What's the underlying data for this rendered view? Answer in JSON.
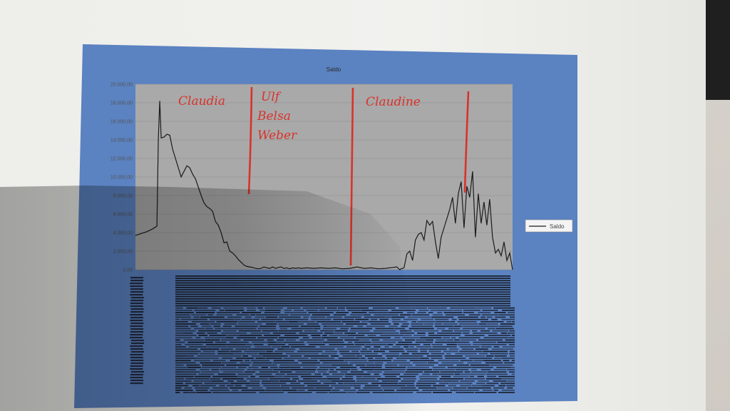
{
  "photo": {
    "subject": "printed chart page photographed on a table",
    "colors": {
      "table": "#d9d7d1",
      "paper": "#efefec",
      "chart_frame": "#5b82c1",
      "plot_area": "#a9a9a9",
      "line": "#1a1a1a",
      "marker_pen": "#d9322b"
    }
  },
  "chart_data": {
    "type": "line",
    "title": "Saldo",
    "xlabel": "",
    "ylabel": "",
    "ylim": [
      0,
      20000
    ],
    "yticks": [
      "20.000,00",
      "18.000,00",
      "16.000,00",
      "14.000,00",
      "12.000,00",
      "10.000,00",
      "8.000,00",
      "6.000,00",
      "4.000,00",
      "2.000,00",
      "0,00"
    ],
    "grid": true,
    "legend": {
      "placement": "right",
      "entries": [
        "Saldo"
      ]
    },
    "series": [
      {
        "name": "Saldo",
        "x": [
          0,
          8,
          16,
          24,
          30,
          32,
          34,
          36,
          40,
          44,
          48,
          52,
          56,
          60,
          64,
          68,
          72,
          76,
          80,
          84,
          88,
          92,
          96,
          100,
          104,
          108,
          112,
          116,
          120,
          124,
          128,
          132,
          136,
          140,
          144,
          148,
          152,
          156,
          160,
          164,
          168,
          172,
          176,
          180,
          184,
          188,
          192,
          196,
          200,
          204,
          208,
          212,
          216,
          220,
          224,
          228,
          232,
          240,
          250,
          260,
          270,
          280,
          290,
          300,
          310,
          320,
          330,
          340,
          350,
          360,
          366,
          370,
          372,
          376,
          380,
          384,
          388,
          392,
          396,
          400,
          404,
          408,
          412,
          416,
          420,
          424,
          428,
          432,
          436,
          440,
          444,
          448,
          452,
          456,
          460,
          464,
          468,
          472,
          476,
          480,
          484,
          488,
          492,
          496,
          500,
          504,
          508,
          512,
          516,
          520,
          524,
          528
        ],
        "values": [
          3700,
          3900,
          4100,
          4400,
          4700,
          14100,
          18200,
          14200,
          14300,
          14600,
          14500,
          13000,
          12000,
          11000,
          10000,
          10600,
          11200,
          11000,
          10300,
          9800,
          8900,
          8000,
          7200,
          6800,
          6600,
          6300,
          5200,
          4800,
          4000,
          2900,
          3000,
          2000,
          1800,
          1500,
          1100,
          800,
          500,
          350,
          300,
          250,
          150,
          100,
          150,
          300,
          200,
          150,
          300,
          150,
          250,
          300,
          150,
          200,
          100,
          200,
          150,
          200,
          150,
          200,
          150,
          200,
          150,
          200,
          100,
          150,
          300,
          150,
          200,
          100,
          150,
          250,
          300,
          0,
          100,
          200,
          1700,
          2000,
          1000,
          3200,
          3800,
          4000,
          3200,
          5300,
          4800,
          5200,
          3000,
          1200,
          3500,
          4500,
          5500,
          6500,
          7800,
          5000,
          8200,
          9500,
          4500,
          9000,
          7800,
          10600,
          3500,
          8200,
          5000,
          7300,
          4800,
          7600,
          3500,
          1800,
          2200,
          1500,
          3000,
          1000,
          1800,
          0
        ]
      }
    ],
    "annotations": [
      {
        "text": "Claudia",
        "style": "handwritten"
      },
      {
        "text": "Ulf",
        "style": "handwritten"
      },
      {
        "text": "Belsa",
        "style": "handwritten"
      },
      {
        "text": "Weber",
        "style": "handwritten"
      },
      {
        "text": "Claudine",
        "style": "handwritten"
      }
    ]
  }
}
